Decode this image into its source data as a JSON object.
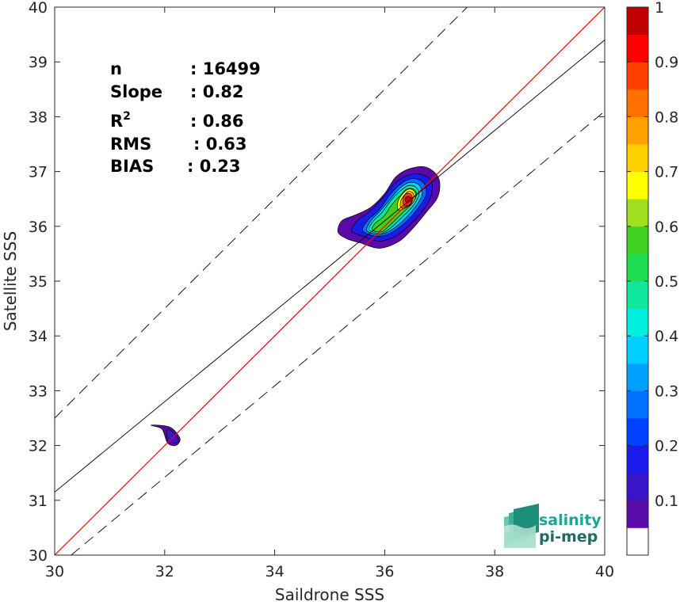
{
  "chart_data": {
    "type": "heatmap",
    "xlabel": "Saildrone SSS",
    "ylabel": "Satellite SSS",
    "xlim": [
      30,
      40
    ],
    "ylim": [
      30,
      40
    ],
    "x_ticks": [
      "30",
      "32",
      "34",
      "36",
      "38",
      "40"
    ],
    "y_ticks": [
      "30",
      "31",
      "32",
      "33",
      "34",
      "35",
      "36",
      "37",
      "38",
      "39",
      "40"
    ],
    "stats": [
      {
        "label": "n",
        "value": ": 16499"
      },
      {
        "label": "Slope",
        "value": ": 0.82"
      },
      {
        "label": "R",
        "sup": "2",
        "value": ": 0.86"
      },
      {
        "label": "RMS",
        "value": ": 0.63"
      },
      {
        "label": "BIAS",
        "value": ": 0.23"
      }
    ],
    "lines": {
      "identity": {
        "slope": 1,
        "intercept": 0,
        "color": "#ff0000"
      },
      "fit": {
        "points": [
          [
            30,
            31.15
          ],
          [
            40,
            39.4
          ]
        ],
        "color": "#000000"
      },
      "upper_bound": {
        "points": [
          [
            30,
            32.5
          ],
          [
            37.5,
            40
          ]
        ],
        "dash": true
      },
      "lower_bound": {
        "points": [
          [
            30.3,
            30
          ],
          [
            40,
            38.1
          ]
        ],
        "dash": true
      }
    },
    "colorbar": {
      "ticks": [
        "0.1",
        "0.2",
        "0.3",
        "0.4",
        "0.5",
        "0.6",
        "0.7",
        "0.8",
        "0.9",
        "1"
      ],
      "levels": [
        0,
        0.05,
        0.1,
        0.15,
        0.2,
        0.25,
        0.3,
        0.35,
        0.4,
        0.45,
        0.5,
        0.55,
        0.6,
        0.65,
        0.7,
        0.75,
        0.8,
        0.85,
        0.9,
        0.95,
        1.0
      ],
      "colors": [
        "#ffffff",
        "#5a0aa8",
        "#3a14c8",
        "#1a1aeb",
        "#0040ff",
        "#0070ff",
        "#00a0ff",
        "#00d0ff",
        "#00f0e0",
        "#10e8a0",
        "#20dc50",
        "#40d020",
        "#a0e020",
        "#ffff00",
        "#ffd000",
        "#ffa000",
        "#ff7000",
        "#ff4000",
        "#ff0000",
        "#c00000",
        "#800000"
      ]
    },
    "density_clusters": [
      {
        "name": "main",
        "contours": [
          {
            "level": 0.05,
            "points": [
              [
                35.15,
                35.9
              ],
              [
                35.3,
                35.78
              ],
              [
                35.55,
                35.7
              ],
              [
                35.9,
                35.6
              ],
              [
                36.25,
                35.72
              ],
              [
                36.5,
                35.95
              ],
              [
                36.75,
                36.25
              ],
              [
                36.97,
                36.55
              ],
              [
                36.98,
                36.88
              ],
              [
                36.75,
                37.08
              ],
              [
                36.45,
                37.05
              ],
              [
                36.2,
                36.9
              ],
              [
                36.0,
                36.6
              ],
              [
                35.75,
                36.35
              ],
              [
                35.45,
                36.2
              ],
              [
                35.22,
                36.1
              ]
            ]
          },
          {
            "level": 0.15,
            "points": [
              [
                35.4,
                35.92
              ],
              [
                35.6,
                35.82
              ],
              [
                35.9,
                35.73
              ],
              [
                36.2,
                35.82
              ],
              [
                36.45,
                36.02
              ],
              [
                36.7,
                36.3
              ],
              [
                36.85,
                36.58
              ],
              [
                36.83,
                36.85
              ],
              [
                36.6,
                36.96
              ],
              [
                36.35,
                36.9
              ],
              [
                36.15,
                36.75
              ],
              [
                35.95,
                36.5
              ],
              [
                35.7,
                36.25
              ],
              [
                35.5,
                36.1
              ]
            ]
          },
          {
            "level": 0.25,
            "points": [
              [
                35.6,
                35.92
              ],
              [
                35.85,
                35.82
              ],
              [
                36.1,
                35.87
              ],
              [
                36.35,
                36.05
              ],
              [
                36.6,
                36.32
              ],
              [
                36.75,
                36.58
              ],
              [
                36.7,
                36.8
              ],
              [
                36.5,
                36.87
              ],
              [
                36.3,
                36.78
              ],
              [
                36.1,
                36.58
              ],
              [
                35.9,
                36.3
              ],
              [
                35.7,
                36.12
              ]
            ]
          },
          {
            "level": 0.35,
            "points": [
              [
                35.68,
                35.92
              ],
              [
                35.9,
                35.85
              ],
              [
                36.1,
                35.92
              ],
              [
                36.33,
                36.1
              ],
              [
                36.55,
                36.35
              ],
              [
                36.68,
                36.58
              ],
              [
                36.62,
                36.76
              ],
              [
                36.45,
                36.8
              ],
              [
                36.28,
                36.7
              ],
              [
                36.12,
                36.52
              ],
              [
                35.92,
                36.28
              ],
              [
                35.75,
                36.1
              ]
            ]
          },
          {
            "level": 0.45,
            "points": [
              [
                35.72,
                35.93
              ],
              [
                35.92,
                35.87
              ],
              [
                36.08,
                35.95
              ],
              [
                36.3,
                36.15
              ],
              [
                36.52,
                36.38
              ],
              [
                36.62,
                36.58
              ],
              [
                36.56,
                36.72
              ],
              [
                36.42,
                36.74
              ],
              [
                36.28,
                36.64
              ],
              [
                36.12,
                36.48
              ],
              [
                35.95,
                36.25
              ],
              [
                35.78,
                36.08
              ]
            ]
          },
          {
            "level": 0.55,
            "points": [
              [
                35.78,
                35.93
              ],
              [
                35.95,
                35.9
              ],
              [
                36.05,
                35.98
              ],
              [
                36.3,
                36.22
              ],
              [
                36.5,
                36.42
              ],
              [
                36.58,
                36.58
              ],
              [
                36.52,
                36.68
              ],
              [
                36.4,
                36.68
              ],
              [
                36.3,
                36.58
              ],
              [
                36.15,
                36.42
              ],
              [
                35.98,
                36.18
              ],
              [
                35.82,
                36.05
              ]
            ]
          },
          {
            "level": 0.65,
            "points": [
              [
                36.25,
                36.3
              ],
              [
                36.42,
                36.36
              ],
              [
                36.54,
                36.48
              ],
              [
                36.55,
                36.62
              ],
              [
                36.45,
                36.68
              ],
              [
                36.33,
                36.6
              ],
              [
                36.24,
                36.45
              ]
            ]
          },
          {
            "level": 0.75,
            "points": [
              [
                36.3,
                36.34
              ],
              [
                36.44,
                36.38
              ],
              [
                36.52,
                36.5
              ],
              [
                36.52,
                36.6
              ],
              [
                36.44,
                36.64
              ],
              [
                36.35,
                36.56
              ],
              [
                36.29,
                36.45
              ]
            ]
          },
          {
            "level": 0.85,
            "points": [
              [
                36.35,
                36.38
              ],
              [
                36.46,
                36.4
              ],
              [
                36.5,
                36.5
              ],
              [
                36.48,
                36.58
              ],
              [
                36.4,
                36.6
              ],
              [
                36.34,
                36.52
              ]
            ]
          },
          {
            "level": 0.95,
            "points": [
              [
                36.4,
                36.43
              ],
              [
                36.47,
                36.45
              ],
              [
                36.48,
                36.52
              ],
              [
                36.42,
                36.55
              ],
              [
                36.37,
                36.5
              ]
            ]
          }
        ]
      },
      {
        "name": "minor",
        "contours": [
          {
            "level": 0.05,
            "points": [
              [
                31.75,
                32.37
              ],
              [
                32.0,
                32.36
              ],
              [
                32.15,
                32.3
              ],
              [
                32.28,
                32.12
              ],
              [
                32.2,
                32.0
              ],
              [
                32.05,
                32.05
              ],
              [
                31.95,
                32.3
              ]
            ]
          },
          {
            "level": 0.1,
            "points": [
              [
                32.05,
                32.3
              ],
              [
                32.2,
                32.2
              ],
              [
                32.25,
                32.08
              ],
              [
                32.15,
                32.04
              ],
              [
                32.05,
                32.1
              ]
            ]
          }
        ]
      }
    ]
  },
  "logo": {
    "line1": "salinity",
    "line2": "pi-mep"
  }
}
